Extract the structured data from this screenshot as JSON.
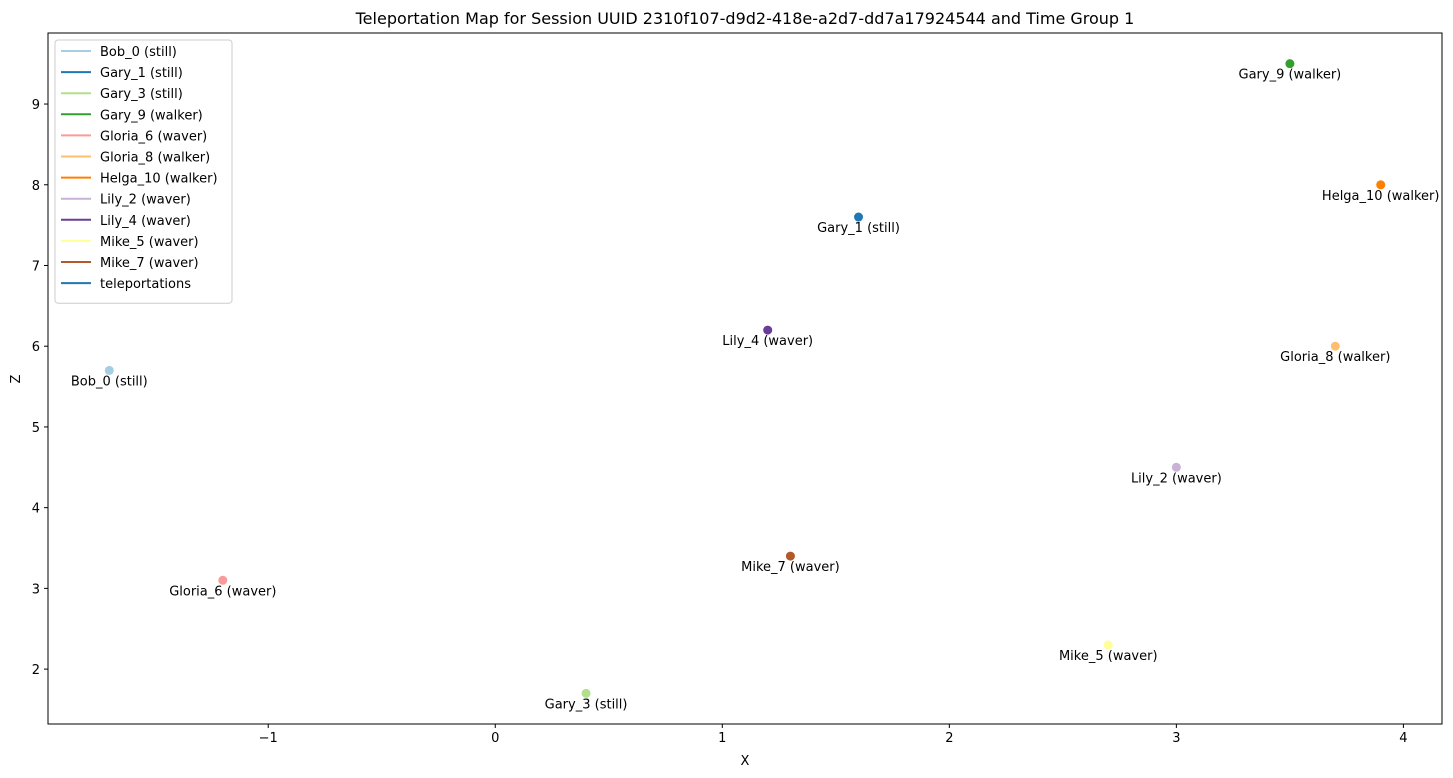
{
  "chart_data": {
    "type": "scatter",
    "title": "Teleportation Map for Session UUID 2310f107-d9d2-418e-a2d7-dd7a17924544 and Time Group 1",
    "xlabel": "X",
    "ylabel": "Z",
    "xlim": [
      -1.97,
      4.17
    ],
    "ylim": [
      1.32,
      9.88
    ],
    "xticks": [
      -1,
      0,
      1,
      2,
      3,
      4
    ],
    "xtick_labels": [
      "−1",
      "0",
      "1",
      "2",
      "3",
      "4"
    ],
    "yticks": [
      2,
      3,
      4,
      5,
      6,
      7,
      8,
      9
    ],
    "ytick_labels": [
      "2",
      "3",
      "4",
      "5",
      "6",
      "7",
      "8",
      "9"
    ],
    "grid": false,
    "legend_position": "top-left",
    "series": [
      {
        "name": "Bob_0 (still)",
        "color": "#a6cee3",
        "x": -1.7,
        "y": 5.7
      },
      {
        "name": "Gary_1 (still)",
        "color": "#1f78b4",
        "x": 1.6,
        "y": 7.6
      },
      {
        "name": "Gary_3 (still)",
        "color": "#b2df8a",
        "x": 0.4,
        "y": 1.7
      },
      {
        "name": "Gary_9 (walker)",
        "color": "#33a02c",
        "x": 3.5,
        "y": 9.5
      },
      {
        "name": "Gloria_6 (waver)",
        "color": "#fb9a99",
        "x": -1.2,
        "y": 3.1
      },
      {
        "name": "Gloria_8 (walker)",
        "color": "#fdbf6f",
        "x": 3.7,
        "y": 6.0
      },
      {
        "name": "Helga_10 (walker)",
        "color": "#ff7f00",
        "x": 3.9,
        "y": 8.0
      },
      {
        "name": "Lily_2 (waver)",
        "color": "#cab2d6",
        "x": 3.0,
        "y": 4.5
      },
      {
        "name": "Lily_4 (waver)",
        "color": "#6a3d9a",
        "x": 1.2,
        "y": 6.2
      },
      {
        "name": "Mike_5 (waver)",
        "color": "#ffff99",
        "x": 2.7,
        "y": 2.3
      },
      {
        "name": "Mike_7 (waver)",
        "color": "#b15928",
        "x": 1.3,
        "y": 3.4
      }
    ],
    "teleportations": {
      "name": "teleportations",
      "color": "#1f77b4",
      "segments": []
    }
  }
}
